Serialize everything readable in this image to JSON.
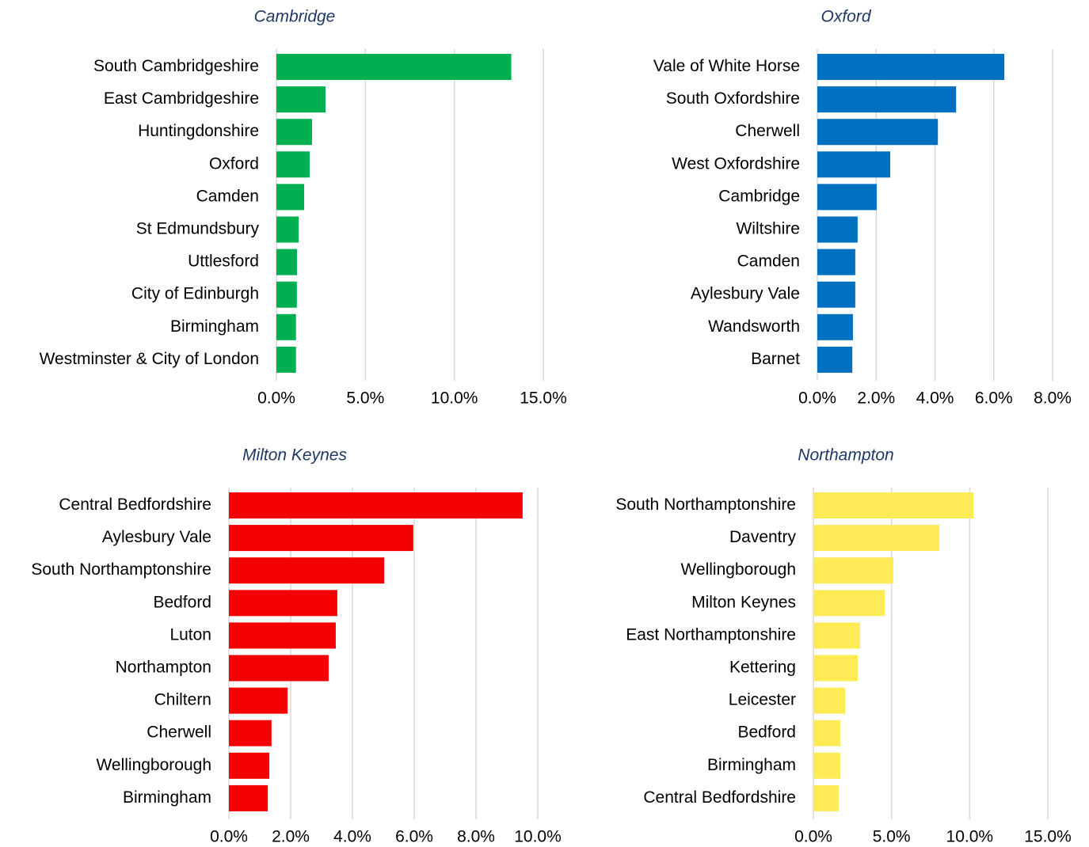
{
  "chart_data": [
    {
      "type": "bar",
      "orientation": "horizontal",
      "title": "Cambridge",
      "color": "#00b050",
      "grid": true,
      "categories": [
        "South Cambridgeshire",
        "East Cambridgeshire",
        "Huntingdonshire",
        "Oxford",
        "Camden",
        "St Edmundsbury",
        "Uttlesford",
        "City of Edinburgh",
        "Birmingham",
        "Westminster & City of London"
      ],
      "values": [
        13.2,
        2.76,
        2.0,
        1.87,
        1.56,
        1.25,
        1.16,
        1.15,
        1.1,
        1.1
      ],
      "xlim": [
        0,
        15
      ],
      "xticks": [
        {
          "value": 0,
          "label": "0.0%"
        },
        {
          "value": 5,
          "label": "5.0%"
        },
        {
          "value": 10,
          "label": "10.0%"
        },
        {
          "value": 15,
          "label": "15.0%"
        }
      ]
    },
    {
      "type": "bar",
      "orientation": "horizontal",
      "title": "Oxford",
      "color": "#0070c0",
      "grid": true,
      "categories": [
        "Vale of White Horse",
        "South Oxfordshire",
        "Cherwell",
        "West Oxfordshire",
        "Cambridge",
        "Wiltshire",
        "Camden",
        "Aylesbury Vale",
        "Wandsworth",
        "Barnet"
      ],
      "values": [
        6.36,
        4.72,
        4.1,
        2.48,
        2.02,
        1.37,
        1.29,
        1.29,
        1.21,
        1.19
      ],
      "xlim": [
        0,
        8
      ],
      "xticks": [
        {
          "value": 0,
          "label": "0.0%"
        },
        {
          "value": 2,
          "label": "2.0%"
        },
        {
          "value": 4,
          "label": "4.0%"
        },
        {
          "value": 6,
          "label": "6.0%"
        },
        {
          "value": 8,
          "label": "8.0%"
        }
      ]
    },
    {
      "type": "bar",
      "orientation": "horizontal",
      "title": "Milton Keynes",
      "color": "#f50000",
      "grid": true,
      "categories": [
        "Central Bedfordshire",
        "Aylesbury Vale",
        "South Northamptonshire",
        "Bedford",
        "Luton",
        "Northampton",
        "Chiltern",
        "Cherwell",
        "Wellingborough",
        "Birmingham"
      ],
      "values": [
        9.51,
        5.97,
        5.03,
        3.51,
        3.46,
        3.23,
        1.9,
        1.38,
        1.31,
        1.26
      ],
      "xlim": [
        0,
        10
      ],
      "xticks": [
        {
          "value": 0,
          "label": "0.0%"
        },
        {
          "value": 2,
          "label": "2.0%"
        },
        {
          "value": 4,
          "label": "4.0%"
        },
        {
          "value": 6,
          "label": "6.0%"
        },
        {
          "value": 8,
          "label": "8.0%"
        },
        {
          "value": 10,
          "label": "10.0%"
        }
      ]
    },
    {
      "type": "bar",
      "orientation": "horizontal",
      "title": "Northampton",
      "color": "#ffeb55",
      "grid": true,
      "categories": [
        "South Northamptonshire",
        "Daventry",
        "Wellingborough",
        "Milton Keynes",
        "East Northamptonshire",
        "Kettering",
        "Leicester",
        "Bedford",
        "Birmingham",
        "Central Bedfordshire"
      ],
      "values": [
        10.24,
        8.06,
        5.12,
        4.56,
        2.99,
        2.84,
        2.03,
        1.72,
        1.72,
        1.62
      ],
      "xlim": [
        0,
        15
      ],
      "xticks": [
        {
          "value": 0,
          "label": "0.0%"
        },
        {
          "value": 5,
          "label": "5.0%"
        },
        {
          "value": 10,
          "label": "10.0%"
        },
        {
          "value": 15,
          "label": "15.0%"
        }
      ]
    }
  ]
}
